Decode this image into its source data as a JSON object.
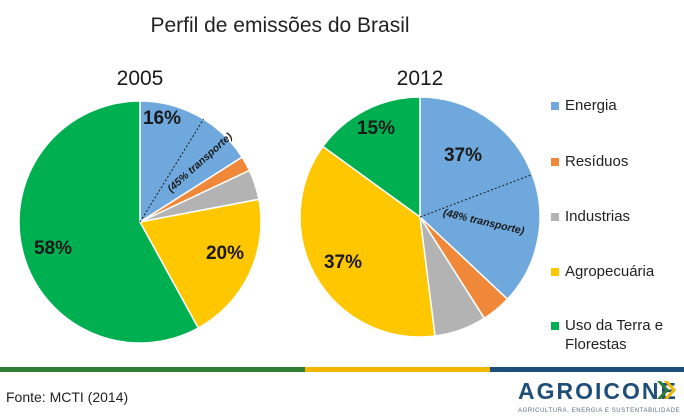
{
  "title": "Perfil de emissões do Brasil",
  "chart_data": [
    {
      "type": "pie",
      "title": "2005",
      "labels": [
        "Energia",
        "Resíduos",
        "Industrias",
        "Agropecuária",
        "Uso da Terra e Florestas"
      ],
      "values": [
        16,
        2,
        4,
        20,
        58
      ],
      "value_labels": [
        "16%",
        "",
        "",
        "20%",
        "58%"
      ],
      "annotation": "(45% transporte)",
      "transport_share_of_energy": 45
    },
    {
      "type": "pie",
      "title": "2012",
      "labels": [
        "Energia",
        "Resíduos",
        "Industrias",
        "Agropecuária",
        "Uso da Terra e Florestas"
      ],
      "values": [
        37,
        4,
        7,
        37,
        15
      ],
      "value_labels": [
        "37%",
        "",
        "",
        "37%",
        "15%"
      ],
      "annotation": "(48% transporte)",
      "transport_share_of_energy": 48
    }
  ],
  "legend": {
    "placement": "right",
    "items": [
      {
        "label": "Energia",
        "color": "#6fa8dc"
      },
      {
        "label": "Resíduos",
        "color": "#f0883a"
      },
      {
        "label": "Industrias",
        "color": "#b3b3b3"
      },
      {
        "label": "Agropecuária",
        "color": "#ffc700"
      },
      {
        "label": "Uso da Terra e Florestas",
        "color": "#00b050"
      }
    ]
  },
  "footer": {
    "source": "Fonte: MCTI (2014)",
    "bar_colors": [
      "#2e7d32",
      "#f2b600",
      "#1f4e79"
    ]
  },
  "logo": {
    "name": "AGROICONE",
    "tagline": "AGRICULTURA, ENERGIA E SUSTENTABILIDADE"
  }
}
